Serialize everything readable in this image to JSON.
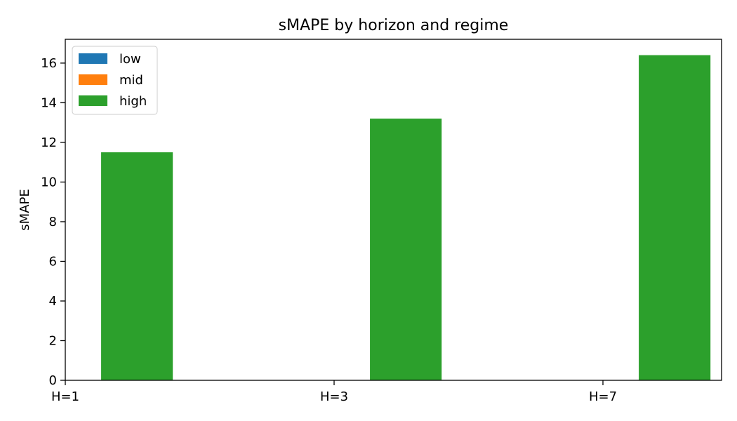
{
  "chart_data": {
    "type": "bar",
    "title": "sMAPE by horizon and regime",
    "xlabel": "",
    "ylabel": "sMAPE",
    "categories": [
      "H=1",
      "H=3",
      "H=7"
    ],
    "series": [
      {
        "name": "low",
        "color": "#1f77b4",
        "values": [
          0,
          0,
          0
        ]
      },
      {
        "name": "mid",
        "color": "#ff7f0e",
        "values": [
          0,
          0,
          0
        ]
      },
      {
        "name": "high",
        "color": "#2ca02c",
        "values": [
          11.5,
          13.2,
          16.4
        ]
      }
    ],
    "ylim": [
      0,
      17.2
    ],
    "yticks": [
      0,
      2,
      4,
      6,
      8,
      10,
      12,
      14,
      16
    ],
    "grid": false,
    "legend_position": "upper-left"
  }
}
